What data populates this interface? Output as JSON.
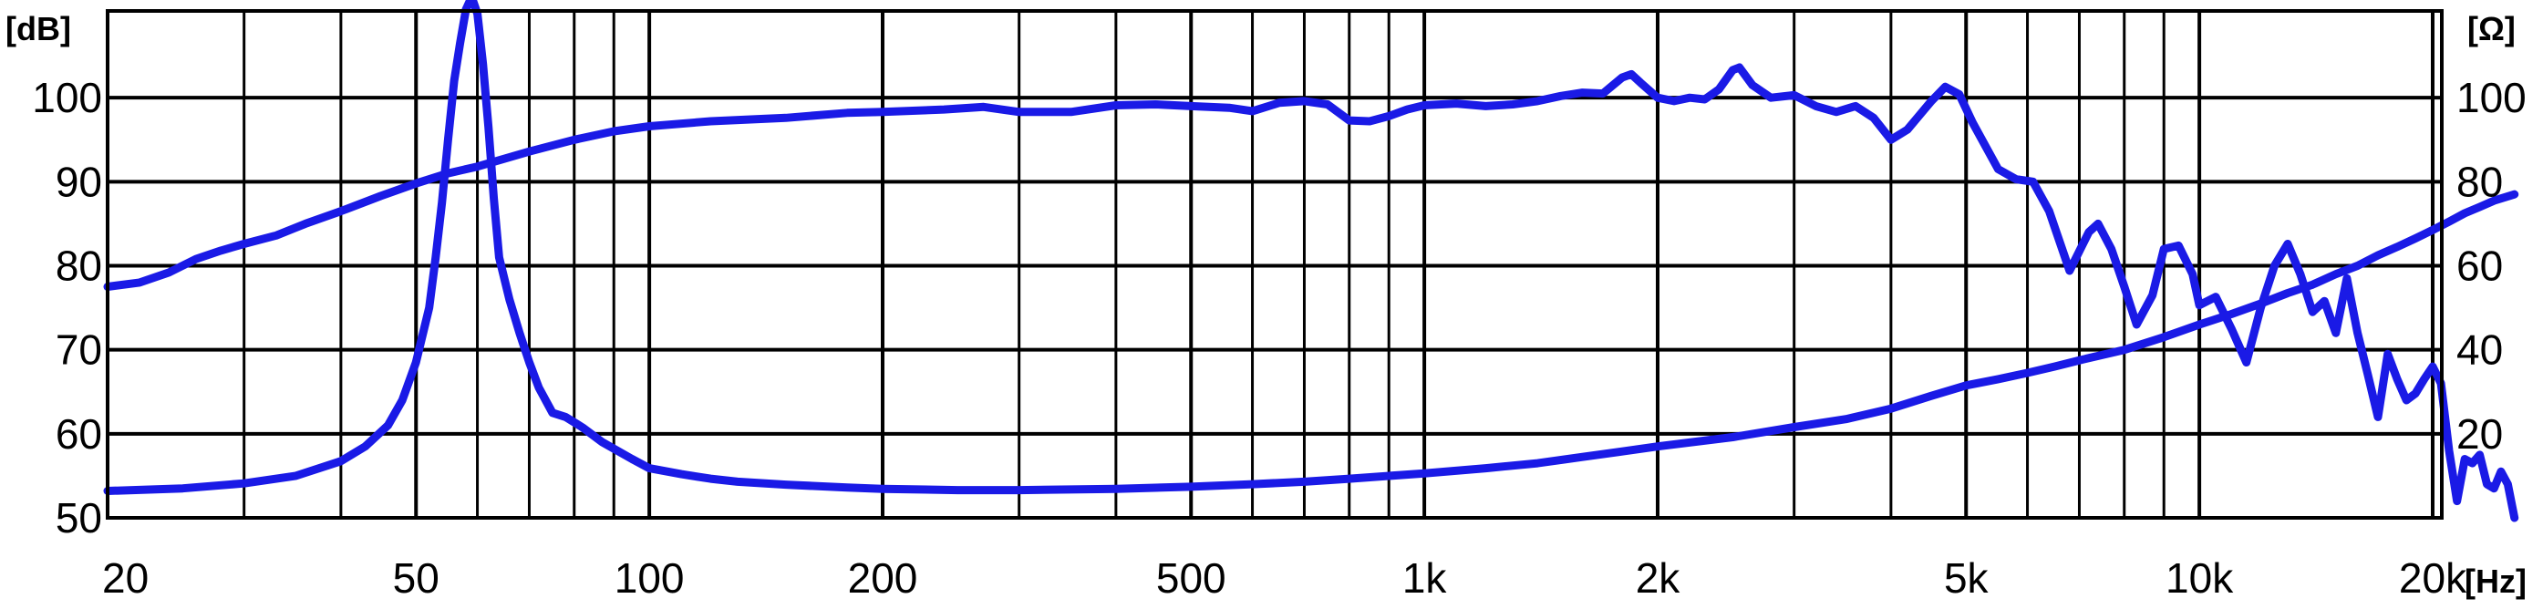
{
  "chart_data": {
    "type": "line",
    "x_scale": "log",
    "xlim": [
      20,
      20000
    ],
    "x_ticks": [
      {
        "value": 20,
        "label": "20"
      },
      {
        "value": 50,
        "label": "50"
      },
      {
        "value": 100,
        "label": "100"
      },
      {
        "value": 200,
        "label": "200"
      },
      {
        "value": 500,
        "label": "500"
      },
      {
        "value": 1000,
        "label": "1k"
      },
      {
        "value": 2000,
        "label": "2k"
      },
      {
        "value": 5000,
        "label": "5k"
      },
      {
        "value": 10000,
        "label": "10k"
      },
      {
        "value": 20000,
        "label": "20k"
      }
    ],
    "x_unit": "[Hz]",
    "y_left": {
      "unit": "[dB]",
      "ylim": [
        50,
        110
      ],
      "ticks": [
        {
          "value": 50,
          "label": "50"
        },
        {
          "value": 60,
          "label": "60"
        },
        {
          "value": 70,
          "label": "70"
        },
        {
          "value": 80,
          "label": "80"
        },
        {
          "value": 90,
          "label": "90"
        },
        {
          "value": 100,
          "label": "100"
        }
      ]
    },
    "y_right": {
      "unit": "[Ω]",
      "ylim": [
        0,
        120
      ],
      "ticks": [
        {
          "value": 20,
          "label": "20"
        },
        {
          "value": 40,
          "label": "40"
        },
        {
          "value": 60,
          "label": "60"
        },
        {
          "value": 80,
          "label": "80"
        },
        {
          "value": 100,
          "label": "100"
        }
      ]
    },
    "grid": true,
    "series_color": "#1a1ae6",
    "series": [
      {
        "axis": "left",
        "points": [
          [
            20,
            77.5
          ],
          [
            22,
            78.0
          ],
          [
            24,
            79.2
          ],
          [
            26,
            80.8
          ],
          [
            28,
            81.8
          ],
          [
            30,
            82.6
          ],
          [
            33,
            83.6
          ],
          [
            36,
            85.0
          ],
          [
            40,
            86.5
          ],
          [
            45,
            88.3
          ],
          [
            50,
            89.8
          ],
          [
            55,
            91.0
          ],
          [
            60,
            91.8
          ],
          [
            70,
            93.6
          ],
          [
            80,
            95.0
          ],
          [
            90,
            96.0
          ],
          [
            100,
            96.6
          ],
          [
            120,
            97.2
          ],
          [
            150,
            97.6
          ],
          [
            180,
            98.2
          ],
          [
            200,
            98.3
          ],
          [
            240,
            98.6
          ],
          [
            270,
            98.9
          ],
          [
            300,
            98.3
          ],
          [
            350,
            98.3
          ],
          [
            400,
            99.1
          ],
          [
            450,
            99.2
          ],
          [
            500,
            99.0
          ],
          [
            560,
            98.8
          ],
          [
            600,
            98.4
          ],
          [
            650,
            99.4
          ],
          [
            700,
            99.6
          ],
          [
            750,
            99.2
          ],
          [
            800,
            97.3
          ],
          [
            850,
            97.2
          ],
          [
            900,
            97.8
          ],
          [
            950,
            98.6
          ],
          [
            1000,
            99.1
          ],
          [
            1100,
            99.3
          ],
          [
            1200,
            99.0
          ],
          [
            1300,
            99.2
          ],
          [
            1400,
            99.6
          ],
          [
            1500,
            100.2
          ],
          [
            1600,
            100.6
          ],
          [
            1700,
            100.5
          ],
          [
            1800,
            102.4
          ],
          [
            1850,
            102.8
          ],
          [
            1900,
            101.8
          ],
          [
            2000,
            100.0
          ],
          [
            2100,
            99.6
          ],
          [
            2200,
            100.0
          ],
          [
            2300,
            99.8
          ],
          [
            2400,
            101.0
          ],
          [
            2500,
            103.3
          ],
          [
            2550,
            103.6
          ],
          [
            2650,
            101.5
          ],
          [
            2800,
            100.0
          ],
          [
            3000,
            100.3
          ],
          [
            3200,
            99.0
          ],
          [
            3400,
            98.3
          ],
          [
            3600,
            99.0
          ],
          [
            3800,
            97.6
          ],
          [
            4000,
            95.0
          ],
          [
            4200,
            96.2
          ],
          [
            4500,
            99.5
          ],
          [
            4700,
            101.3
          ],
          [
            4900,
            100.4
          ],
          [
            5100,
            97.0
          ],
          [
            5500,
            91.5
          ],
          [
            5800,
            90.3
          ],
          [
            6100,
            90.0
          ],
          [
            6400,
            86.5
          ],
          [
            6800,
            79.4
          ],
          [
            7200,
            84.0
          ],
          [
            7400,
            85.0
          ],
          [
            7700,
            82.0
          ],
          [
            8000,
            77.5
          ],
          [
            8300,
            73.0
          ],
          [
            8700,
            76.5
          ],
          [
            9000,
            82.0
          ],
          [
            9400,
            82.4
          ],
          [
            9800,
            79.0
          ],
          [
            10000,
            75.3
          ],
          [
            10500,
            76.3
          ],
          [
            11000,
            72.5
          ],
          [
            11500,
            68.5
          ],
          [
            12000,
            75.0
          ],
          [
            12500,
            80.0
          ],
          [
            13000,
            82.6
          ],
          [
            13500,
            79.0
          ],
          [
            14000,
            74.5
          ],
          [
            14500,
            75.8
          ],
          [
            15000,
            72.0
          ],
          [
            15500,
            78.5
          ],
          [
            16000,
            72.0
          ],
          [
            16500,
            67.0
          ],
          [
            17000,
            62.0
          ],
          [
            17500,
            69.5
          ],
          [
            18000,
            66.5
          ],
          [
            18500,
            64.0
          ],
          [
            19000,
            64.8
          ],
          [
            19500,
            66.5
          ],
          [
            20000,
            68.0
          ],
          [
            20500,
            66.0
          ],
          [
            21000,
            58.0
          ],
          [
            21500,
            52.0
          ],
          [
            22000,
            57.0
          ],
          [
            22500,
            56.5
          ],
          [
            23000,
            57.5
          ],
          [
            23500,
            54.0
          ],
          [
            24000,
            53.5
          ],
          [
            24500,
            55.5
          ],
          [
            25000,
            54.0
          ],
          [
            25500,
            50.0
          ]
        ]
      },
      {
        "axis": "right",
        "points": [
          [
            20,
            6.4
          ],
          [
            25,
            7.0
          ],
          [
            30,
            8.2
          ],
          [
            35,
            10.0
          ],
          [
            40,
            13.5
          ],
          [
            43,
            17.0
          ],
          [
            46,
            22.0
          ],
          [
            48,
            28.0
          ],
          [
            50,
            37.0
          ],
          [
            52,
            50.0
          ],
          [
            53,
            62.0
          ],
          [
            54,
            75.0
          ],
          [
            55,
            90.0
          ],
          [
            56,
            104.0
          ],
          [
            57,
            113.0
          ],
          [
            58,
            121.0
          ],
          [
            59,
            124.0
          ],
          [
            60,
            120.0
          ],
          [
            61,
            108.0
          ],
          [
            62,
            93.0
          ],
          [
            63,
            76.0
          ],
          [
            64,
            62.0
          ],
          [
            66,
            52.0
          ],
          [
            68,
            44.0
          ],
          [
            70,
            37.0
          ],
          [
            72,
            31.0
          ],
          [
            75,
            25.0
          ],
          [
            78,
            24.0
          ],
          [
            82,
            21.5
          ],
          [
            87,
            18.0
          ],
          [
            95,
            14.0
          ],
          [
            100,
            11.8
          ],
          [
            110,
            10.4
          ],
          [
            120,
            9.3
          ],
          [
            130,
            8.6
          ],
          [
            150,
            7.9
          ],
          [
            180,
            7.2
          ],
          [
            200,
            6.9
          ],
          [
            250,
            6.6
          ],
          [
            300,
            6.6
          ],
          [
            400,
            6.9
          ],
          [
            500,
            7.4
          ],
          [
            600,
            8.0
          ],
          [
            700,
            8.6
          ],
          [
            800,
            9.3
          ],
          [
            1000,
            10.6
          ],
          [
            1200,
            11.8
          ],
          [
            1400,
            13.0
          ],
          [
            1600,
            14.5
          ],
          [
            1800,
            15.8
          ],
          [
            2000,
            17.0
          ],
          [
            2500,
            19.2
          ],
          [
            3000,
            21.6
          ],
          [
            3500,
            23.5
          ],
          [
            4000,
            26.0
          ],
          [
            4500,
            29.0
          ],
          [
            5000,
            31.5
          ],
          [
            5500,
            33.0
          ],
          [
            6000,
            34.5
          ],
          [
            6500,
            36.0
          ],
          [
            7000,
            37.5
          ],
          [
            8000,
            40.0
          ],
          [
            9000,
            43.0
          ],
          [
            10000,
            46.0
          ],
          [
            11000,
            48.5
          ],
          [
            12000,
            51.0
          ],
          [
            13000,
            53.5
          ],
          [
            14000,
            55.5
          ],
          [
            15000,
            58.0
          ],
          [
            16000,
            60.0
          ],
          [
            17000,
            62.5
          ],
          [
            18000,
            64.5
          ],
          [
            19000,
            66.5
          ],
          [
            20000,
            68.5
          ],
          [
            21000,
            70.5
          ],
          [
            22000,
            72.5
          ],
          [
            23000,
            74.0
          ],
          [
            24000,
            75.5
          ],
          [
            25500,
            77.0
          ]
        ]
      }
    ]
  }
}
